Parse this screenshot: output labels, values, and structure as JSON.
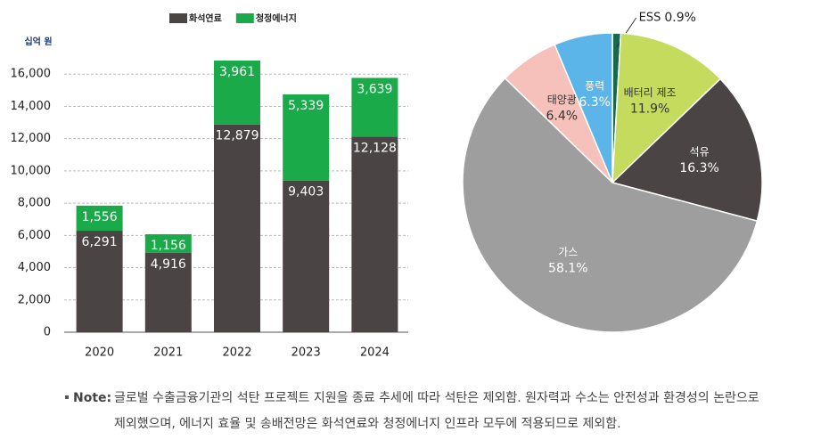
{
  "chart_data": [
    {
      "type": "bar",
      "stacked": true,
      "y_label": "십억 원",
      "categories": [
        "2020",
        "2021",
        "2022",
        "2023",
        "2024"
      ],
      "series": [
        {
          "name": "화석연료",
          "color": "#4a4444",
          "values": [
            6291,
            4916,
            12879,
            9403,
            12128
          ],
          "value_labels": [
            "6,291",
            "4,916",
            "12,879",
            "9,403",
            "12,128"
          ]
        },
        {
          "name": "청정에너지",
          "color": "#1aaa4a",
          "values": [
            1556,
            1156,
            3961,
            5339,
            3639
          ],
          "value_labels": [
            "1,556",
            "1,156",
            "3,961",
            "5,339",
            "3,639"
          ]
        }
      ],
      "ylim": [
        0,
        18000
      ],
      "yticks": [
        0,
        {
          "value": 2000,
          "label": "2,000"
        },
        {
          "value": 4000,
          "label": "4,000"
        },
        {
          "value": 6000,
          "label": "6,000"
        },
        {
          "value": 8000,
          "label": "8,000"
        },
        {
          "value": 10000,
          "label": "10,000"
        },
        {
          "value": 12000,
          "label": "12,000"
        },
        {
          "value": 14000,
          "label": "14,000"
        },
        {
          "value": 16000,
          "label": "16,000"
        }
      ],
      "grid": true,
      "legend": "top"
    },
    {
      "type": "pie",
      "categories": [
        "ESS",
        "배터리 제조",
        "석유",
        "가스",
        "태양광",
        "풍력"
      ],
      "values": [
        0.9,
        11.9,
        16.3,
        58.1,
        6.4,
        6.3
      ],
      "value_labels": [
        "0.9%",
        "11.9%",
        "16.3%",
        "58.1%",
        "6.4%",
        "6.3%"
      ],
      "colors": [
        "#17694a",
        "#c4db5e",
        "#4a4444",
        "#9e9e9e",
        "#f5c1ba",
        "#5bb5e8"
      ]
    }
  ],
  "note": {
    "label": "Note:",
    "lines": [
      "글로벌 수출금융기관의 석탄 프로젝트 지원을 종료 추세에 따라 석탄은 제외함. 원자력과 수소는 안전성과 환경성의 논란으로",
      "제외했으며, 에너지 효율 및 송배전망은 화석연료와 청정에너지 인프라 모두에 적용되므로 제외함."
    ]
  }
}
